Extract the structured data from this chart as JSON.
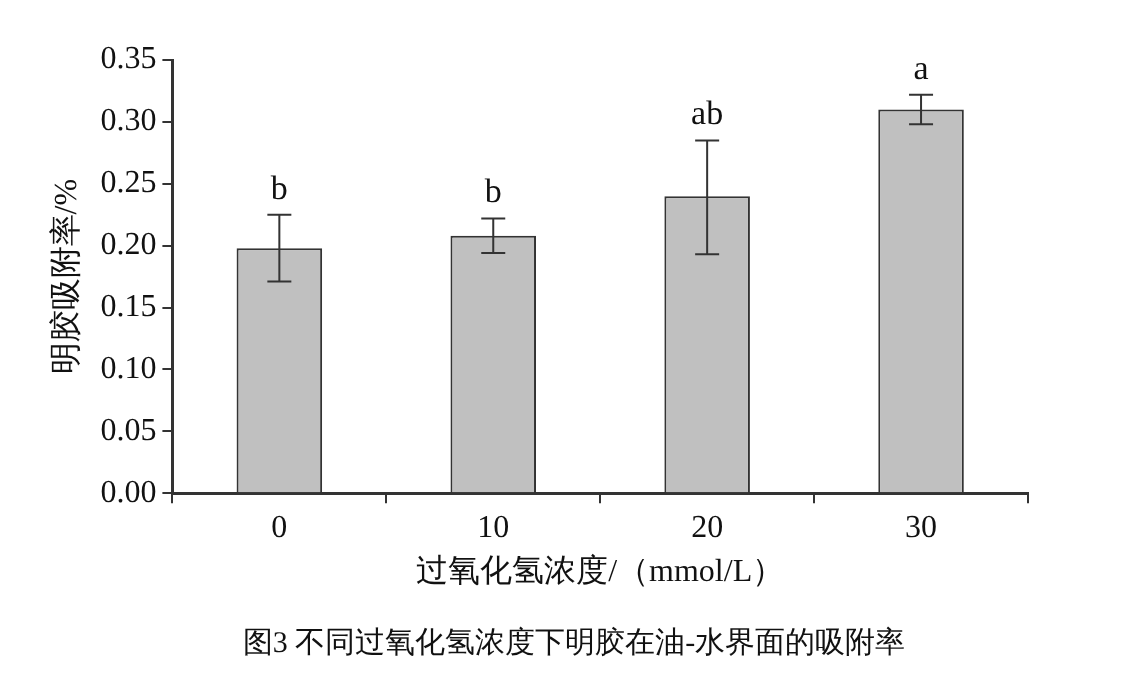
{
  "chart_data": {
    "type": "bar",
    "xlabel": "过氧化氢浓度/（mmol/L）",
    "ylabel": "明胶吸附率/%",
    "categories": [
      "0",
      "10",
      "20",
      "30"
    ],
    "values": [
      0.198,
      0.208,
      0.24,
      0.31
    ],
    "errors": [
      [
        0.171,
        0.225
      ],
      [
        0.194,
        0.222
      ],
      [
        0.193,
        0.285
      ],
      [
        0.298,
        0.322
      ]
    ],
    "color": "#c0c0c0",
    "ylim": [
      0,
      0.35
    ],
    "yticks": [
      {
        "value": 0,
        "label": "0.00"
      },
      {
        "value": 0.05,
        "label": "0.05"
      },
      {
        "value": 0.1,
        "label": "0.10"
      },
      {
        "value": 0.15,
        "label": "0.15"
      },
      {
        "value": 0.2,
        "label": "0.20"
      },
      {
        "value": 0.25,
        "label": "0.25"
      },
      {
        "value": 0.3,
        "label": "0.30"
      },
      {
        "value": 0.35,
        "label": "0.35"
      }
    ],
    "grid": false,
    "legend": false,
    "annotations": [
      {
        "text": "b",
        "x": "0",
        "y": 0.225
      },
      {
        "text": "b",
        "x": "10",
        "y": 0.222
      },
      {
        "text": "ab",
        "x": "20",
        "y": 0.285
      },
      {
        "text": "a",
        "x": "30",
        "y": 0.322
      },
      "图3 不同过氧化氢浓度下明胶在油-水界面的吸附率"
    ]
  }
}
